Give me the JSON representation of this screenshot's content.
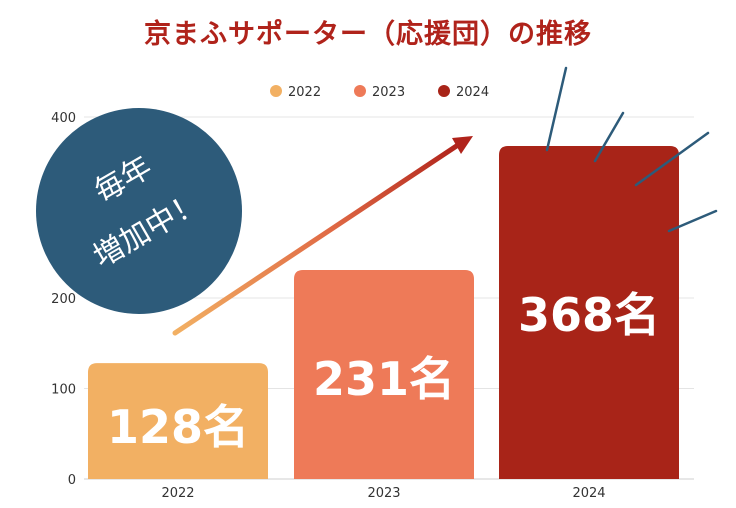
{
  "chart_data": {
    "type": "bar",
    "title": "京まふサポーター（応援団）の推移",
    "categories": [
      "2022",
      "2023",
      "2024"
    ],
    "values": [
      128,
      231,
      368
    ],
    "value_labels": [
      "128名",
      "231名",
      "368名"
    ],
    "legend": [
      "2022",
      "2023",
      "2024"
    ],
    "legend_position": "top",
    "ylim": [
      0,
      400
    ],
    "yticks": [
      "0",
      "100",
      "200",
      "400"
    ],
    "grid": true,
    "xlabel": "",
    "ylabel": "",
    "colors": [
      "#f2b063",
      "#ee7a58",
      "#a82418"
    ],
    "annotation": {
      "line1": "毎年",
      "line2": "増加中！",
      "color": "#2d5b7a"
    },
    "trend_arrow": true
  }
}
